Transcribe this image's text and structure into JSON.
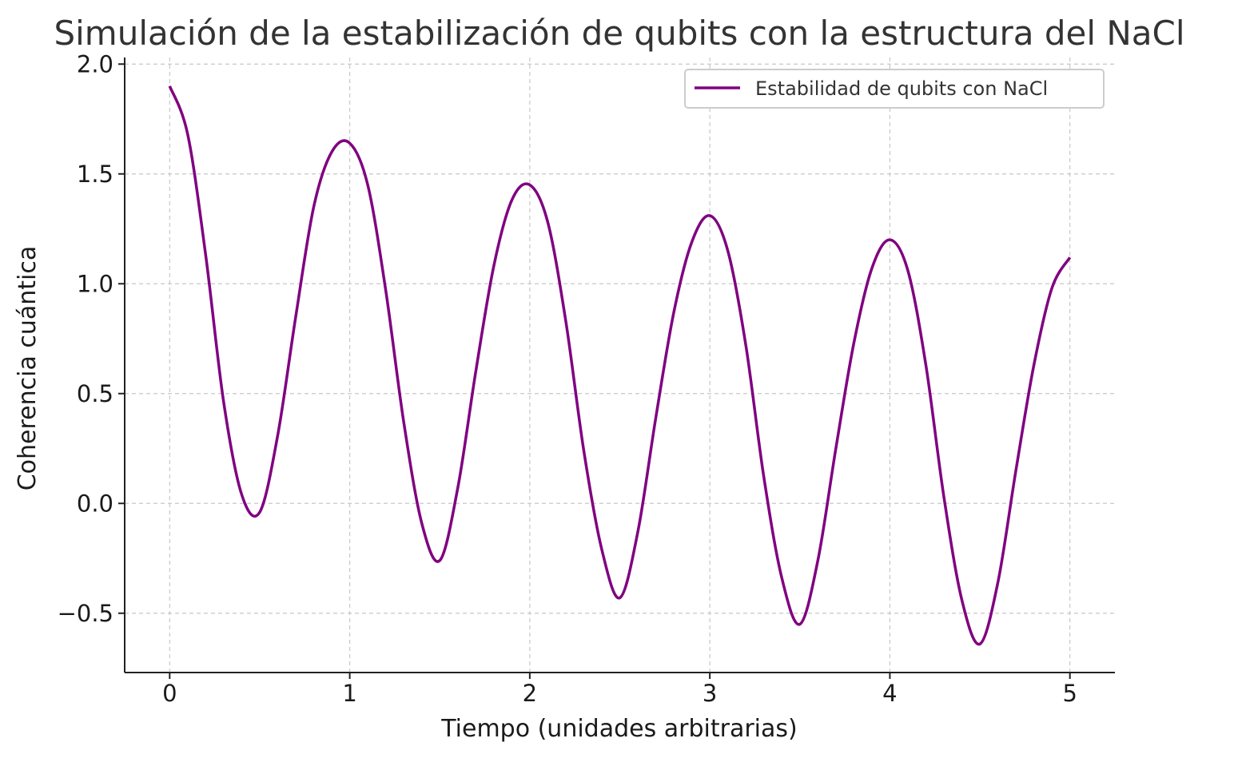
{
  "chart_data": {
    "type": "line",
    "title": "Simulación de la estabilización de qubits con la estructura del NaCl",
    "xlabel": "Tiempo (unidades arbitrarias)",
    "ylabel": "Coherencia cuántica",
    "xlim": [
      -0.25,
      5.25
    ],
    "ylim": [
      -0.77,
      2.03
    ],
    "x_ticks": [
      0,
      1,
      2,
      3,
      4,
      5
    ],
    "x_tick_labels": [
      "0",
      "1",
      "2",
      "3",
      "4",
      "5"
    ],
    "y_ticks": [
      -0.5,
      0.0,
      0.5,
      1.0,
      1.5,
      2.0
    ],
    "y_tick_labels": [
      "−0.5",
      "0.0",
      "0.5",
      "1.0",
      "1.5",
      "2.0"
    ],
    "grid": true,
    "legend_position": "top-right",
    "series": [
      {
        "name": "Estabilidad de qubits con NaCl",
        "color": "#800080",
        "x": [
          0,
          0.1,
          0.2,
          0.3,
          0.4,
          0.5,
          0.6,
          0.7,
          0.8,
          0.9,
          1.0,
          1.1,
          1.2,
          1.3,
          1.4,
          1.5,
          1.6,
          1.7,
          1.8,
          1.9,
          2.0,
          2.1,
          2.2,
          2.3,
          2.4,
          2.5,
          2.6,
          2.7,
          2.8,
          2.9,
          3.0,
          3.1,
          3.2,
          3.3,
          3.4,
          3.5,
          3.6,
          3.7,
          3.8,
          3.9,
          4.0,
          4.1,
          4.2,
          4.3,
          4.4,
          4.5,
          4.6,
          4.7,
          4.8,
          4.9,
          5.0
        ],
        "y": [
          1.9,
          1.68,
          1.13,
          0.46,
          0.04,
          -0.04,
          0.31,
          0.85,
          1.35,
          1.6,
          1.64,
          1.45,
          0.97,
          0.37,
          -0.09,
          -0.26,
          0.07,
          0.6,
          1.08,
          1.38,
          1.45,
          1.28,
          0.83,
          0.24,
          -0.21,
          -0.43,
          -0.13,
          0.39,
          0.87,
          1.19,
          1.31,
          1.15,
          0.72,
          0.12,
          -0.34,
          -0.55,
          -0.26,
          0.25,
          0.73,
          1.07,
          1.2,
          1.06,
          0.63,
          0.03,
          -0.44,
          -0.64,
          -0.36,
          0.15,
          0.63,
          0.98,
          1.12
        ]
      }
    ]
  }
}
